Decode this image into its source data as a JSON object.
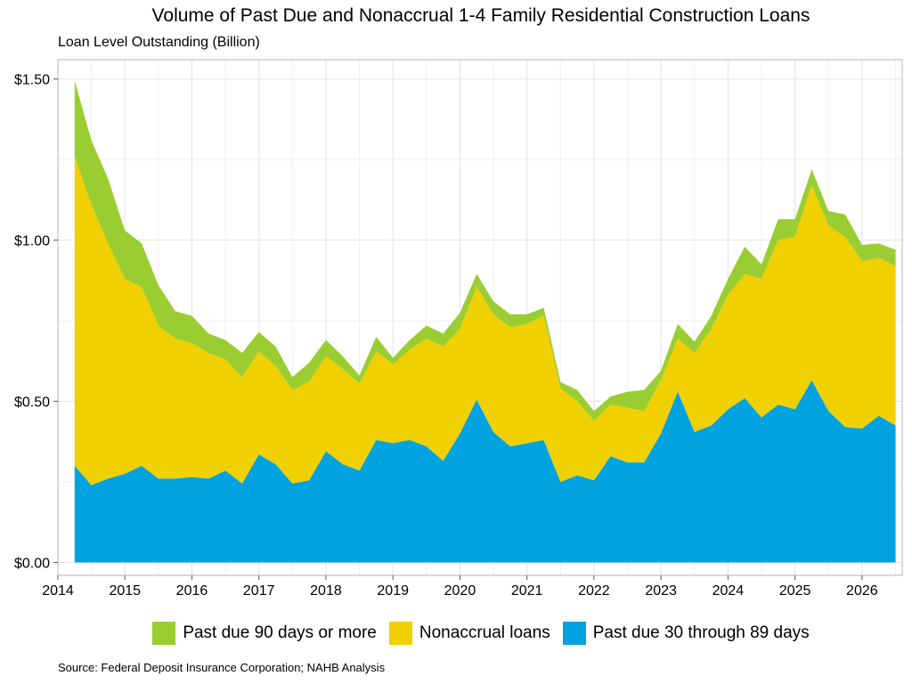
{
  "title": "Volume of Past Due and Nonaccrual 1-4 Family Residential Construction Loans",
  "subtitle": "Loan Level Outstanding (Billion)",
  "source": "Source: Federal Deposit Insurance Corporation; NAHB Analysis",
  "legend": [
    {
      "name": "Past due 90 days or more",
      "color": "#9ACD32"
    },
    {
      "name": "Nonaccrual loans",
      "color": "#F0D000"
    },
    {
      "name": "Past due 30 through 89 days",
      "color": "#00A2E0"
    }
  ],
  "chart_data": {
    "type": "area",
    "stacked": true,
    "x": [
      2014.25,
      2014.5,
      2014.75,
      2015.0,
      2015.25,
      2015.5,
      2015.75,
      2016.0,
      2016.25,
      2016.5,
      2016.75,
      2017.0,
      2017.25,
      2017.5,
      2017.75,
      2018.0,
      2018.25,
      2018.5,
      2018.75,
      2019.0,
      2019.25,
      2019.5,
      2019.75,
      2020.0,
      2020.25,
      2020.5,
      2020.75,
      2021.0,
      2021.25,
      2021.5,
      2021.75,
      2022.0,
      2022.25,
      2022.5,
      2022.75,
      2023.0,
      2023.25,
      2023.5,
      2023.75,
      2024.0,
      2024.25,
      2024.5,
      2024.75,
      2025.0,
      2025.25,
      2025.5,
      2025.75,
      2026.0,
      2026.25,
      2026.5
    ],
    "series": [
      {
        "name": "Past due 30 through 89 days",
        "color": "#00A2E0",
        "values": [
          0.3,
          0.24,
          0.26,
          0.275,
          0.3,
          0.26,
          0.26,
          0.265,
          0.26,
          0.285,
          0.245,
          0.335,
          0.305,
          0.245,
          0.255,
          0.345,
          0.305,
          0.285,
          0.38,
          0.37,
          0.38,
          0.36,
          0.315,
          0.4,
          0.505,
          0.405,
          0.36,
          0.37,
          0.38,
          0.25,
          0.27,
          0.255,
          0.33,
          0.31,
          0.31,
          0.4,
          0.53,
          0.405,
          0.425,
          0.475,
          0.51,
          0.45,
          0.49,
          0.475,
          0.565,
          0.47,
          0.42,
          0.415,
          0.455,
          0.425
        ]
      },
      {
        "name": "Nonaccrual loans",
        "color": "#F0D000",
        "values": [
          0.96,
          0.87,
          0.73,
          0.605,
          0.555,
          0.475,
          0.435,
          0.415,
          0.39,
          0.345,
          0.33,
          0.32,
          0.305,
          0.29,
          0.305,
          0.295,
          0.295,
          0.27,
          0.275,
          0.245,
          0.28,
          0.335,
          0.355,
          0.325,
          0.35,
          0.365,
          0.37,
          0.37,
          0.385,
          0.29,
          0.23,
          0.185,
          0.16,
          0.17,
          0.16,
          0.165,
          0.165,
          0.245,
          0.3,
          0.355,
          0.385,
          0.43,
          0.51,
          0.535,
          0.605,
          0.575,
          0.59,
          0.52,
          0.49,
          0.495
        ]
      },
      {
        "name": "Past due 90 days or more",
        "color": "#9ACD32",
        "values": [
          0.235,
          0.2,
          0.2,
          0.15,
          0.135,
          0.125,
          0.085,
          0.085,
          0.06,
          0.06,
          0.075,
          0.06,
          0.06,
          0.04,
          0.06,
          0.05,
          0.04,
          0.025,
          0.045,
          0.02,
          0.03,
          0.04,
          0.04,
          0.05,
          0.04,
          0.04,
          0.04,
          0.03,
          0.025,
          0.02,
          0.035,
          0.03,
          0.025,
          0.05,
          0.065,
          0.03,
          0.045,
          0.035,
          0.04,
          0.05,
          0.085,
          0.045,
          0.065,
          0.055,
          0.05,
          0.045,
          0.07,
          0.05,
          0.045,
          0.05
        ]
      }
    ],
    "xlim": [
      2014,
      2026.6
    ],
    "ylim": [
      -0.04,
      1.56
    ],
    "xticks": [
      "2014",
      "2015",
      "2016",
      "2017",
      "2018",
      "2019",
      "2020",
      "2021",
      "2022",
      "2023",
      "2024",
      "2025",
      "2026"
    ],
    "yticks": [
      "$0.00",
      "$0.50",
      "$1.00",
      "$1.50"
    ],
    "ytick_values": [
      0,
      0.5,
      1.0,
      1.5
    ],
    "grid": true,
    "legend_position": "bottom"
  }
}
